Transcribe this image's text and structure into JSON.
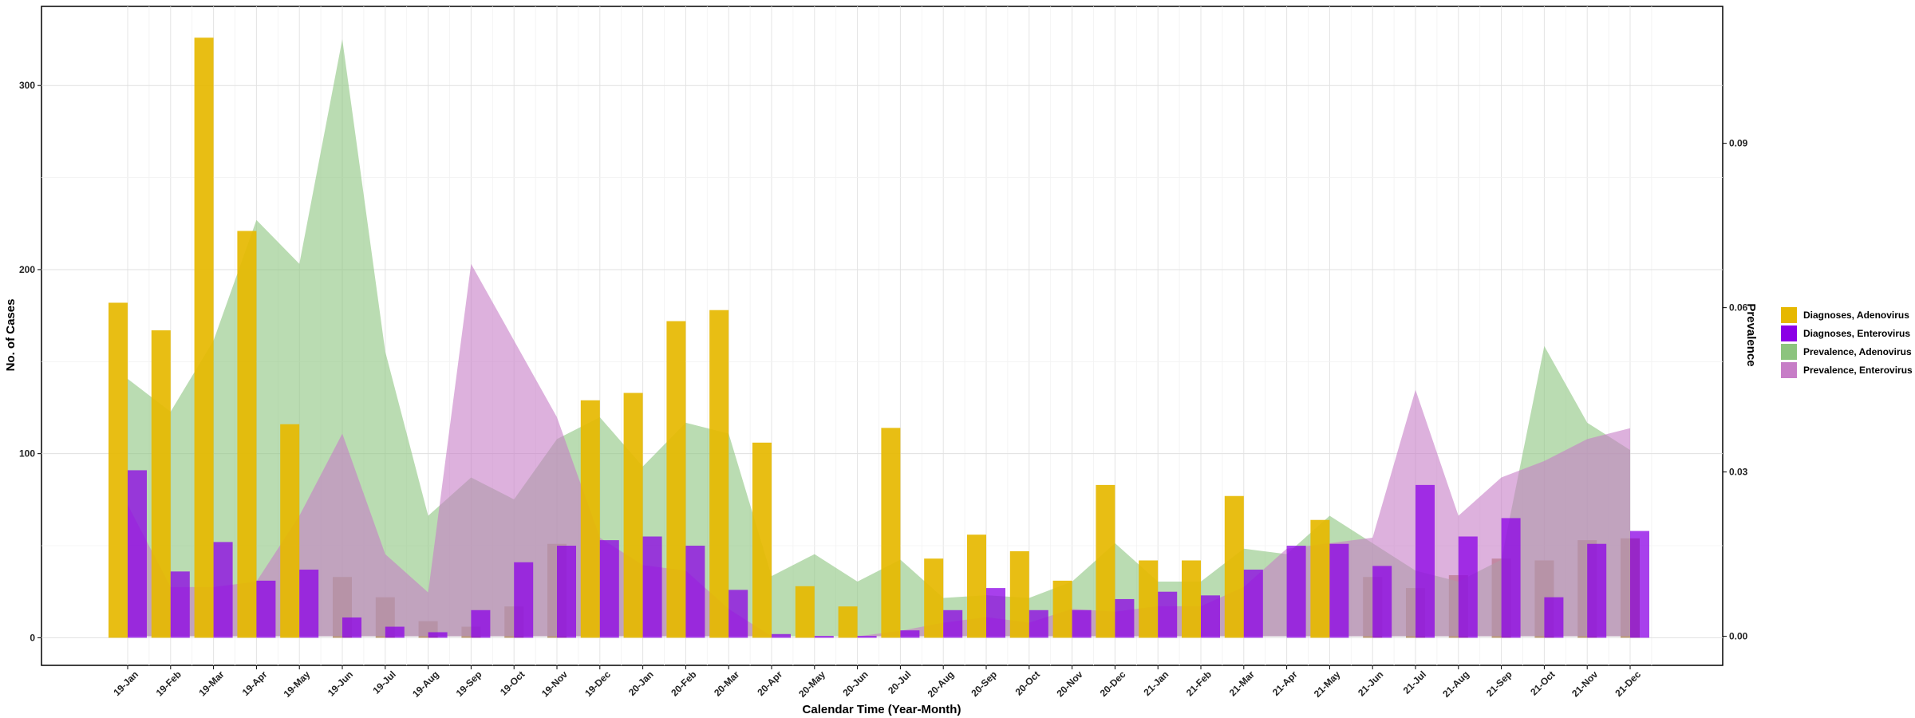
{
  "chart_data": {
    "type": "bar",
    "title": "",
    "xlabel": "Calendar Time (Year-Month)",
    "ylabel": "No. of Cases",
    "y2label": "Prevalence",
    "ylim": [
      -15,
      343
    ],
    "y_ticks": [
      0,
      100,
      200,
      300
    ],
    "y2lim": [
      -0.0053,
      0.115
    ],
    "y2_ticks": [
      0.0,
      0.03,
      0.06,
      0.09
    ],
    "y2_tick_labels": [
      "0.00",
      "0.03",
      "0.06",
      "0.09"
    ],
    "grid": true,
    "legend_position": "right",
    "categories": [
      "19-Jan",
      "19-Feb",
      "19-Mar",
      "19-Apr",
      "19-May",
      "19-Jun",
      "19-Jul",
      "19-Aug",
      "19-Sep",
      "19-Oct",
      "19-Nov",
      "19-Dec",
      "20-Jan",
      "20-Feb",
      "20-Mar",
      "20-Apr",
      "20-May",
      "20-Jun",
      "20-Jul",
      "20-Aug",
      "20-Sep",
      "20-Oct",
      "20-Nov",
      "20-Dec",
      "21-Jan",
      "21-Feb",
      "21-Mar",
      "21-Apr",
      "21-May",
      "21-Jun",
      "21-Jul",
      "21-Aug",
      "21-Sep",
      "21-Oct",
      "21-Nov",
      "21-Dec"
    ],
    "bar_series": [
      {
        "name": "Diagnoses, Adenovirus",
        "color": "#E6B800",
        "values": [
          182,
          167,
          326,
          221,
          116,
          null,
          null,
          null,
          null,
          null,
          null,
          129,
          133,
          172,
          178,
          106,
          28,
          17,
          114,
          43,
          56,
          47,
          31,
          83,
          42,
          42,
          77,
          null,
          64,
          null,
          null,
          null,
          null,
          null,
          null,
          null
        ]
      },
      {
        "name": "Diagnoses, Enterovirus",
        "color": "#8B00E6",
        "values": [
          91,
          36,
          52,
          31,
          37,
          11,
          6,
          3,
          15,
          41,
          50,
          53,
          55,
          50,
          26,
          2,
          1,
          1,
          4,
          15,
          27,
          15,
          15,
          21,
          25,
          23,
          37,
          50,
          51,
          39,
          83,
          55,
          65,
          22,
          51,
          58
        ]
      }
    ],
    "background_bars": {
      "name": "Diagnoses, Adenovirus (behind area)",
      "color": "#BF9A6E",
      "values": [
        null,
        null,
        null,
        null,
        null,
        33,
        22,
        9,
        6,
        17,
        51,
        null,
        null,
        null,
        null,
        null,
        null,
        null,
        null,
        null,
        null,
        null,
        null,
        null,
        null,
        null,
        null,
        null,
        null,
        33,
        27,
        34,
        43,
        42,
        53,
        54
      ]
    },
    "area_series": [
      {
        "name": "Prevalence, Adenovirus",
        "color": "#8CC47E",
        "values": [
          0.047,
          0.041,
          0.054,
          0.076,
          0.068,
          0.109,
          0.052,
          0.022,
          0.029,
          0.025,
          0.036,
          0.04,
          0.031,
          0.039,
          0.037,
          0.011,
          0.015,
          0.01,
          0.014,
          0.007,
          0.0075,
          0.007,
          0.01,
          0.017,
          0.01,
          0.01,
          0.016,
          0.015,
          0.022,
          0.017,
          0.012,
          0.01,
          0.014,
          0.053,
          0.039,
          0.034
        ]
      },
      {
        "name": "Prevalence, Enterovirus",
        "color": "#C77DC7",
        "values": [
          0.024,
          0.009,
          0.009,
          0.01,
          0.022,
          0.037,
          0.015,
          0.008,
          0.068,
          0.054,
          0.04,
          0.018,
          0.013,
          0.012,
          0.005,
          0.0,
          0.0,
          0.0,
          0.001,
          0.0025,
          0.0035,
          0.0025,
          0.005,
          0.0045,
          0.0055,
          0.0055,
          0.009,
          0.016,
          0.017,
          0.018,
          0.045,
          0.022,
          0.029,
          0.032,
          0.036,
          0.038
        ]
      }
    ],
    "legend": [
      {
        "label": "Diagnoses, Adenovirus",
        "color": "#E6B800"
      },
      {
        "label": "Diagnoses, Enterovirus",
        "color": "#8B00E6"
      },
      {
        "label": "Prevalence, Adenovirus",
        "color": "#8CC47E"
      },
      {
        "label": "Prevalence, Enterovirus",
        "color": "#C77DC7"
      }
    ]
  }
}
